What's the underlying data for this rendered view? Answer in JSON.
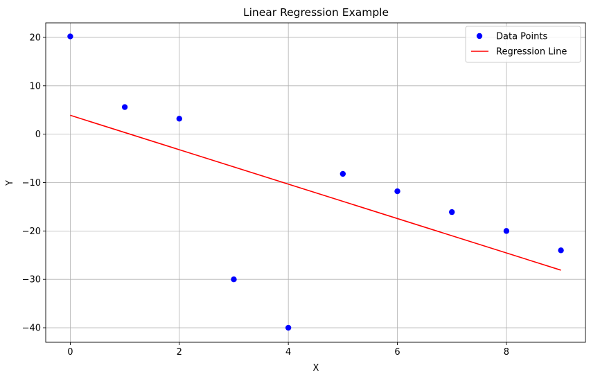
{
  "chart_data": {
    "type": "scatter",
    "title": "Linear Regression Example",
    "xlabel": "X",
    "ylabel": "Y",
    "xlim": [
      -0.45,
      9.45
    ],
    "ylim": [
      -43,
      23
    ],
    "xticks": [
      0,
      2,
      4,
      6,
      8
    ],
    "yticks": [
      -40,
      -30,
      -20,
      -10,
      0,
      10,
      20
    ],
    "grid": true,
    "legend_position": "top-right",
    "series": [
      {
        "name": "Data Points",
        "kind": "scatter",
        "color": "#0000ff",
        "x": [
          0,
          1,
          2,
          3,
          4,
          5,
          6,
          7,
          8,
          9
        ],
        "y": [
          20.2,
          5.6,
          3.2,
          -30,
          -40,
          -8.2,
          -11.8,
          -16.1,
          -20,
          -24
        ]
      },
      {
        "name": "Regression Line",
        "kind": "line",
        "color": "#ff0000",
        "x": [
          0,
          9
        ],
        "y": [
          3.9,
          -28.1
        ]
      }
    ]
  }
}
